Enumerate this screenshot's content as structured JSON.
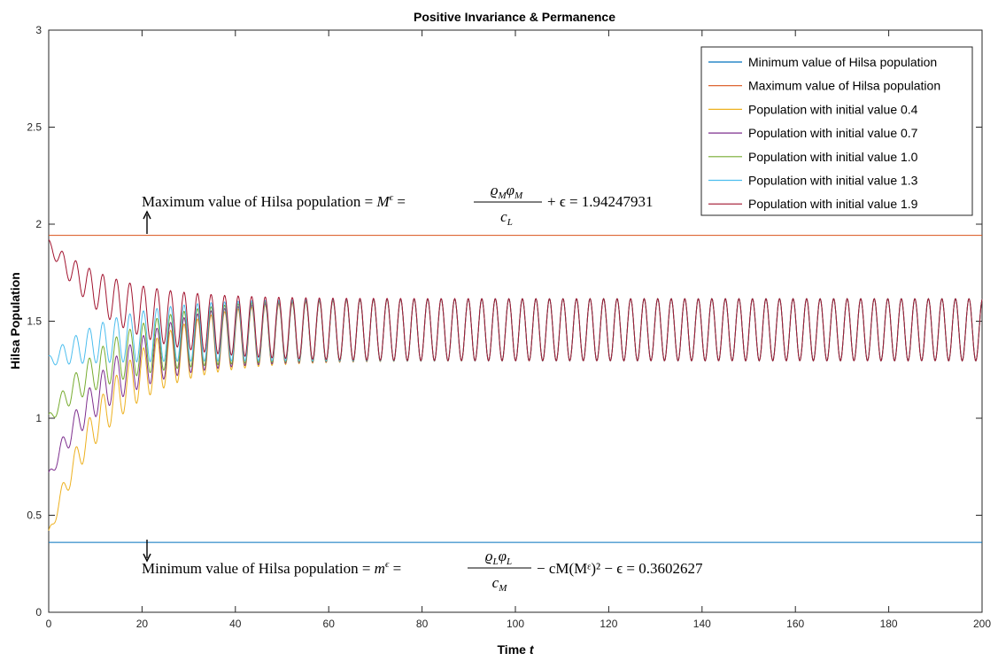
{
  "chart_data": {
    "type": "line",
    "title": "Positive Invariance & Permanence",
    "xlabel": "Time t",
    "xlabel_main": "Time ",
    "xlabel_var": "t",
    "ylabel": "Hilsa Population",
    "xlim": [
      0,
      200
    ],
    "ylim": [
      0,
      3
    ],
    "xticks": [
      0,
      20,
      40,
      60,
      80,
      100,
      120,
      140,
      160,
      180,
      200
    ],
    "yticks": [
      0,
      0.5,
      1,
      1.5,
      2,
      2.5,
      3
    ],
    "ytick_labels": [
      "0",
      "0.5",
      "1",
      "1.5",
      "2",
      "2.5",
      "3"
    ],
    "grid": false,
    "legend_position": "top-right",
    "series": [
      {
        "name": "Minimum value of Hilsa population",
        "color": "#0072BD",
        "kind": "constant",
        "value": 0.3602627
      },
      {
        "name": "Maximum value of Hilsa population",
        "color": "#D95319",
        "kind": "constant",
        "value": 1.94247931
      },
      {
        "name": "Population with initial value 0.4",
        "color": "#EDB120",
        "kind": "trajectory",
        "initial": 0.4
      },
      {
        "name": "Population with initial value 0.7",
        "color": "#7E2F8E",
        "kind": "trajectory",
        "initial": 0.7
      },
      {
        "name": "Population with initial value 1.0",
        "color": "#77AC30",
        "kind": "trajectory",
        "initial": 1.0
      },
      {
        "name": "Population with initial value 1.3",
        "color": "#4DBEEE",
        "kind": "trajectory",
        "initial": 1.3
      },
      {
        "name": "Population with initial value 1.9",
        "color": "#A2142F",
        "kind": "trajectory",
        "initial": 1.9
      }
    ],
    "oscillation": {
      "mean": 1.48,
      "amplitude": 0.16,
      "period": 2.9,
      "settle_time": 55
    },
    "annotations": [
      {
        "id": "max",
        "text": "Maximum value of Hilsa population = Mᵋ = ϱMφM / cL + ϵ = 1.94247931",
        "x": 21,
        "y": 1.94247931
      },
      {
        "id": "min",
        "text": "Minimum value of Hilsa population = mᵋ = ϱLφL / cM − cM(Mᵋ)² − ϵ = 0.3602627",
        "x": 21,
        "y": 0.3602627
      }
    ],
    "annotation_parts": {
      "max_prefix": "Maximum value of Hilsa population = ",
      "min_prefix": "Minimum value of Hilsa population = ",
      "max_value": "+ ϵ = 1.94247931",
      "min_value": "− cM(Mᵋ)² − ϵ = 0.3602627",
      "sym_M": "M",
      "sym_m": "m",
      "sym_eps": "ϵ",
      "rho": "ϱ",
      "phi": "φ",
      "sub_M": "M",
      "sub_L": "L",
      "c": "c"
    }
  }
}
